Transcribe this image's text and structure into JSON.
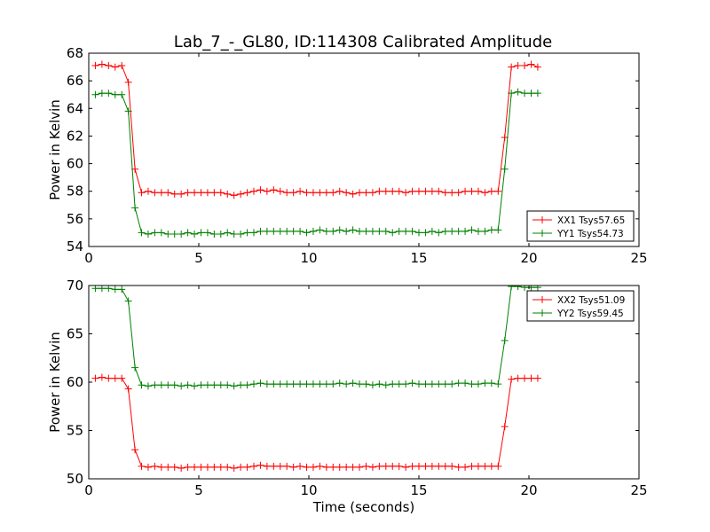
{
  "title": "Lab_7_-_GL80, ID:114308 Calibrated Amplitude",
  "chart_data": [
    {
      "type": "line",
      "xlabel": "",
      "ylabel": "Power in Kelvin",
      "xlim": [
        0,
        25
      ],
      "ylim": [
        54,
        68
      ],
      "xticks": [
        0,
        5,
        10,
        15,
        20,
        25
      ],
      "yticks": [
        54,
        56,
        58,
        60,
        62,
        64,
        66,
        68
      ],
      "grid": false,
      "legend": "lower-right",
      "series": [
        {
          "name": "XX1 Tsys57.65",
          "color": "#ff0000",
          "x": [
            0.3,
            0.6,
            0.9,
            1.2,
            1.5,
            1.8,
            2.1,
            2.4,
            2.7,
            3.0,
            3.3,
            3.6,
            3.9,
            4.2,
            4.5,
            4.8,
            5.1,
            5.4,
            5.7,
            6.0,
            6.3,
            6.6,
            6.9,
            7.2,
            7.5,
            7.8,
            8.1,
            8.4,
            8.7,
            9.0,
            9.3,
            9.6,
            9.9,
            10.2,
            10.5,
            10.8,
            11.1,
            11.4,
            11.7,
            12.0,
            12.3,
            12.6,
            12.9,
            13.2,
            13.5,
            13.8,
            14.1,
            14.4,
            14.7,
            15.0,
            15.3,
            15.6,
            15.9,
            16.2,
            16.5,
            16.8,
            17.1,
            17.4,
            17.7,
            18.0,
            18.3,
            18.6,
            18.9,
            19.2,
            19.5,
            19.8,
            20.1,
            20.4
          ],
          "y": [
            67.1,
            67.2,
            67.1,
            67.0,
            67.1,
            65.9,
            59.6,
            57.9,
            58.0,
            57.9,
            57.9,
            57.9,
            57.8,
            57.8,
            57.9,
            57.9,
            57.9,
            57.9,
            57.9,
            57.9,
            57.8,
            57.7,
            57.8,
            57.9,
            58.0,
            58.1,
            58.0,
            58.1,
            58.0,
            57.9,
            57.9,
            58.0,
            57.9,
            57.9,
            57.9,
            57.9,
            57.9,
            58.0,
            57.9,
            57.8,
            57.9,
            57.9,
            57.9,
            58.0,
            58.0,
            58.0,
            58.0,
            57.9,
            58.0,
            58.0,
            58.0,
            58.0,
            58.0,
            57.9,
            57.9,
            57.9,
            58.0,
            58.0,
            58.0,
            57.9,
            58.0,
            58.0,
            61.9,
            67.0,
            67.1,
            67.1,
            67.2,
            67.0
          ]
        },
        {
          "name": "YY1 Tsys54.73",
          "color": "#008000",
          "x": [
            0.3,
            0.6,
            0.9,
            1.2,
            1.5,
            1.8,
            2.1,
            2.4,
            2.7,
            3.0,
            3.3,
            3.6,
            3.9,
            4.2,
            4.5,
            4.8,
            5.1,
            5.4,
            5.7,
            6.0,
            6.3,
            6.6,
            6.9,
            7.2,
            7.5,
            7.8,
            8.1,
            8.4,
            8.7,
            9.0,
            9.3,
            9.6,
            9.9,
            10.2,
            10.5,
            10.8,
            11.1,
            11.4,
            11.7,
            12.0,
            12.3,
            12.6,
            12.9,
            13.2,
            13.5,
            13.8,
            14.1,
            14.4,
            14.7,
            15.0,
            15.3,
            15.6,
            15.9,
            16.2,
            16.5,
            16.8,
            17.1,
            17.4,
            17.7,
            18.0,
            18.3,
            18.6,
            18.9,
            19.2,
            19.5,
            19.8,
            20.1,
            20.4
          ],
          "y": [
            65.0,
            65.1,
            65.1,
            65.0,
            65.0,
            63.8,
            56.8,
            55.0,
            54.9,
            55.0,
            55.0,
            54.9,
            54.9,
            54.9,
            55.0,
            54.9,
            55.0,
            55.0,
            54.9,
            54.9,
            55.0,
            54.9,
            54.9,
            55.0,
            55.0,
            55.1,
            55.1,
            55.1,
            55.1,
            55.1,
            55.1,
            55.1,
            55.0,
            55.1,
            55.2,
            55.1,
            55.1,
            55.2,
            55.1,
            55.2,
            55.1,
            55.1,
            55.1,
            55.1,
            55.1,
            55.0,
            55.1,
            55.1,
            55.1,
            55.0,
            55.0,
            55.1,
            55.0,
            55.1,
            55.1,
            55.1,
            55.1,
            55.2,
            55.1,
            55.1,
            55.2,
            55.2,
            59.6,
            65.1,
            65.2,
            65.1,
            65.1,
            65.1
          ]
        }
      ]
    },
    {
      "type": "line",
      "xlabel": "Time (seconds)",
      "ylabel": "Power in Kelvin",
      "xlim": [
        0,
        25
      ],
      "ylim": [
        50,
        70
      ],
      "xticks": [
        0,
        5,
        10,
        15,
        20,
        25
      ],
      "yticks": [
        50,
        55,
        60,
        65,
        70
      ],
      "grid": false,
      "legend": "top-right",
      "series": [
        {
          "name": "XX2 Tsys51.09",
          "color": "#ff0000",
          "x": [
            0.3,
            0.6,
            0.9,
            1.2,
            1.5,
            1.8,
            2.1,
            2.4,
            2.7,
            3.0,
            3.3,
            3.6,
            3.9,
            4.2,
            4.5,
            4.8,
            5.1,
            5.4,
            5.7,
            6.0,
            6.3,
            6.6,
            6.9,
            7.2,
            7.5,
            7.8,
            8.1,
            8.4,
            8.7,
            9.0,
            9.3,
            9.6,
            9.9,
            10.2,
            10.5,
            10.8,
            11.1,
            11.4,
            11.7,
            12.0,
            12.3,
            12.6,
            12.9,
            13.2,
            13.5,
            13.8,
            14.1,
            14.4,
            14.7,
            15.0,
            15.3,
            15.6,
            15.9,
            16.2,
            16.5,
            16.8,
            17.1,
            17.4,
            17.7,
            18.0,
            18.3,
            18.6,
            18.9,
            19.2,
            19.5,
            19.8,
            20.1,
            20.4
          ],
          "y": [
            60.4,
            60.5,
            60.4,
            60.4,
            60.4,
            59.3,
            53.0,
            51.3,
            51.2,
            51.3,
            51.2,
            51.2,
            51.2,
            51.1,
            51.2,
            51.2,
            51.2,
            51.2,
            51.2,
            51.2,
            51.2,
            51.1,
            51.2,
            51.2,
            51.3,
            51.4,
            51.3,
            51.3,
            51.3,
            51.3,
            51.2,
            51.3,
            51.2,
            51.2,
            51.3,
            51.2,
            51.2,
            51.2,
            51.2,
            51.2,
            51.2,
            51.3,
            51.2,
            51.3,
            51.3,
            51.3,
            51.3,
            51.2,
            51.3,
            51.3,
            51.3,
            51.3,
            51.3,
            51.3,
            51.3,
            51.2,
            51.2,
            51.3,
            51.3,
            51.3,
            51.3,
            51.3,
            55.4,
            60.3,
            60.4,
            60.4,
            60.4,
            60.4
          ]
        },
        {
          "name": "YY2 Tsys59.45",
          "color": "#008000",
          "x": [
            0.3,
            0.6,
            0.9,
            1.2,
            1.5,
            1.8,
            2.1,
            2.4,
            2.7,
            3.0,
            3.3,
            3.6,
            3.9,
            4.2,
            4.5,
            4.8,
            5.1,
            5.4,
            5.7,
            6.0,
            6.3,
            6.6,
            6.9,
            7.2,
            7.5,
            7.8,
            8.1,
            8.4,
            8.7,
            9.0,
            9.3,
            9.6,
            9.9,
            10.2,
            10.5,
            10.8,
            11.1,
            11.4,
            11.7,
            12.0,
            12.3,
            12.6,
            12.9,
            13.2,
            13.5,
            13.8,
            14.1,
            14.4,
            14.7,
            15.0,
            15.3,
            15.6,
            15.9,
            16.2,
            16.5,
            16.8,
            17.1,
            17.4,
            17.7,
            18.0,
            18.3,
            18.6,
            18.9,
            19.2,
            19.5,
            19.8,
            20.1,
            20.4
          ],
          "y": [
            69.7,
            69.7,
            69.7,
            69.6,
            69.6,
            68.4,
            61.5,
            59.7,
            59.6,
            59.7,
            59.7,
            59.7,
            59.7,
            59.6,
            59.7,
            59.6,
            59.7,
            59.7,
            59.7,
            59.7,
            59.7,
            59.6,
            59.7,
            59.7,
            59.8,
            59.9,
            59.8,
            59.8,
            59.8,
            59.8,
            59.8,
            59.8,
            59.8,
            59.8,
            59.8,
            59.8,
            59.8,
            59.9,
            59.8,
            59.9,
            59.8,
            59.8,
            59.7,
            59.8,
            59.7,
            59.8,
            59.8,
            59.8,
            59.9,
            59.8,
            59.8,
            59.8,
            59.8,
            59.8,
            59.8,
            59.9,
            59.9,
            59.8,
            59.8,
            59.9,
            59.9,
            59.8,
            64.3,
            69.9,
            69.9,
            69.8,
            69.8,
            69.8
          ]
        }
      ]
    }
  ]
}
